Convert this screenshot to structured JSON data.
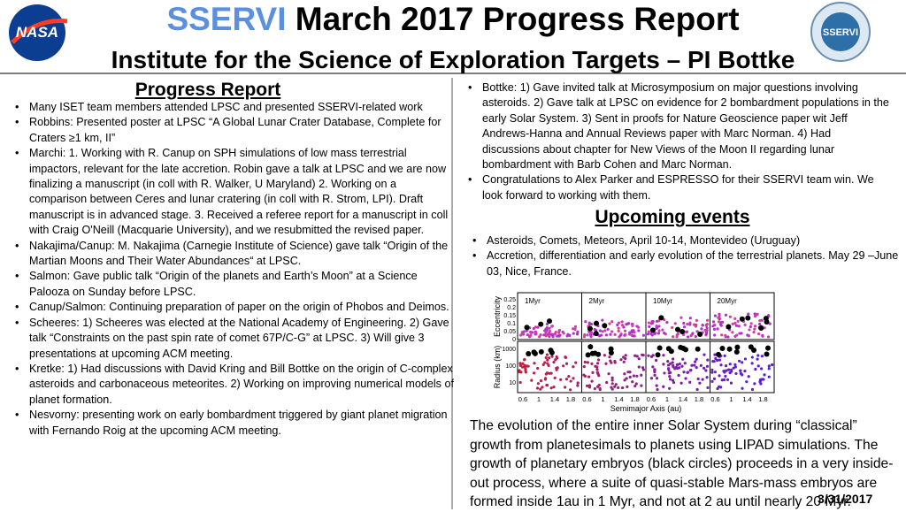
{
  "header": {
    "title_highlight": "SSERVI",
    "title_rest": "March 2017 Progress Report",
    "subtitle": "Institute for the Science of Exploration Targets – PI Bottke",
    "nasa_logo": "NASA",
    "sservi_logo": "SSERVI"
  },
  "left": {
    "heading": "Progress Report",
    "bullets": [
      "Many ISET team members attended LPSC and presented SSERVI-related work",
      "Robbins: Presented poster at LPSC “A Global Lunar Crater Database, Complete for Craters ≥1 km, II”",
      "Marchi: 1. Working with R. Canup on SPH simulations of low mass terrestrial impactors, relevant for the late accretion. Robin gave a talk at LPSC and we are now finalizing a manuscript (in coll with R. Walker, U Maryland) 2. Working on a comparison between Ceres and lunar cratering (in coll with R. Strom, LPI). Draft manuscript is in advanced stage. 3. Received a referee report for a manuscript in coll with Craig O'Neill (Macquarie University), and we resubmitted the revised paper.",
      "Nakajima/Canup: M. Nakajima (Carnegie Institute of Science) gave talk “Origin of the Martian Moons and Their Water Abundances“ at LPSC.",
      "Salmon: Gave public talk “Origin of the planets and Earth’s Moon” at a Science Palooza on Sunday before LPSC.",
      "Canup/Salmon: Continuing preparation of paper on the origin of Phobos and Deimos.",
      "Scheeres: 1) Scheeres was elected at the National Academy of Engineering. 2) Gave talk “Constraints on the past spin rate of comet 67P/C-G” at LPSC. 3) Will give 3 presentations at upcoming ACM meeting.",
      "Kretke: 1) Had discussions with David Kring and Bill Bottke on the origin of C-complex asteroids and carbonaceous meteorites. 2) Working on improving numerical models of planet formation.",
      "Nesvorny: presenting work on early bombardment triggered by giant planet migration with Fernando Roig at the upcoming ACM meeting."
    ]
  },
  "right": {
    "bullets": [
      "Bottke: 1) Gave invited talk at Microsymposium on major questions involving asteroids. 2) Gave talk at LPSC on evidence for 2 bombardment populations in the early Solar System. 3) Sent in proofs for Nature Geoscience paper wit Jeff Andrews-Hanna and Annual Reviews paper with Marc Norman. 4) Had discussions about chapter for New Views of the Moon II regarding lunar bombardment with Barb Cohen and Marc Norman.",
      "Congratulations to Alex Parker and ESPRESSO for their SSERVI team win. We look forward to working with them."
    ],
    "events_heading": "Upcoming events",
    "events": [
      "Asteroids, Comets, Meteors, April 10-14, Montevideo (Uruguay)",
      "Accretion, differentiation and early evolution of the terrestrial planets. May 29 –June 03, Nice, France."
    ],
    "figure": {
      "panels": [
        "1Myr",
        "2Myr",
        "10Myr",
        "20Myr"
      ],
      "ylabel_top": "Eccentricity",
      "ylabel_bottom": "Radius (km)",
      "xlabel": "Semimajor Axis (au)",
      "yticks_top": [
        "0.25",
        "0.2",
        "0.15",
        "0.1",
        "0.05",
        "0"
      ],
      "yticks_bottom": [
        "1000",
        "100",
        "10"
      ],
      "xticks": [
        "0.6",
        "1",
        "1.4",
        "1.8"
      ]
    },
    "caption": "The evolution of the entire inner Solar System during “classical” growth from planetesimals to planets using LIPAD simulations. The growth of planetary embryos (black circles) proceeds in a very inside-out process, where a suite of quasi-stable Mars-mass embryos are formed inside 1au in 1 Myr, and not at 2 au until nearly 20 Myr."
  },
  "footer": {
    "date": "3/31/2017"
  }
}
